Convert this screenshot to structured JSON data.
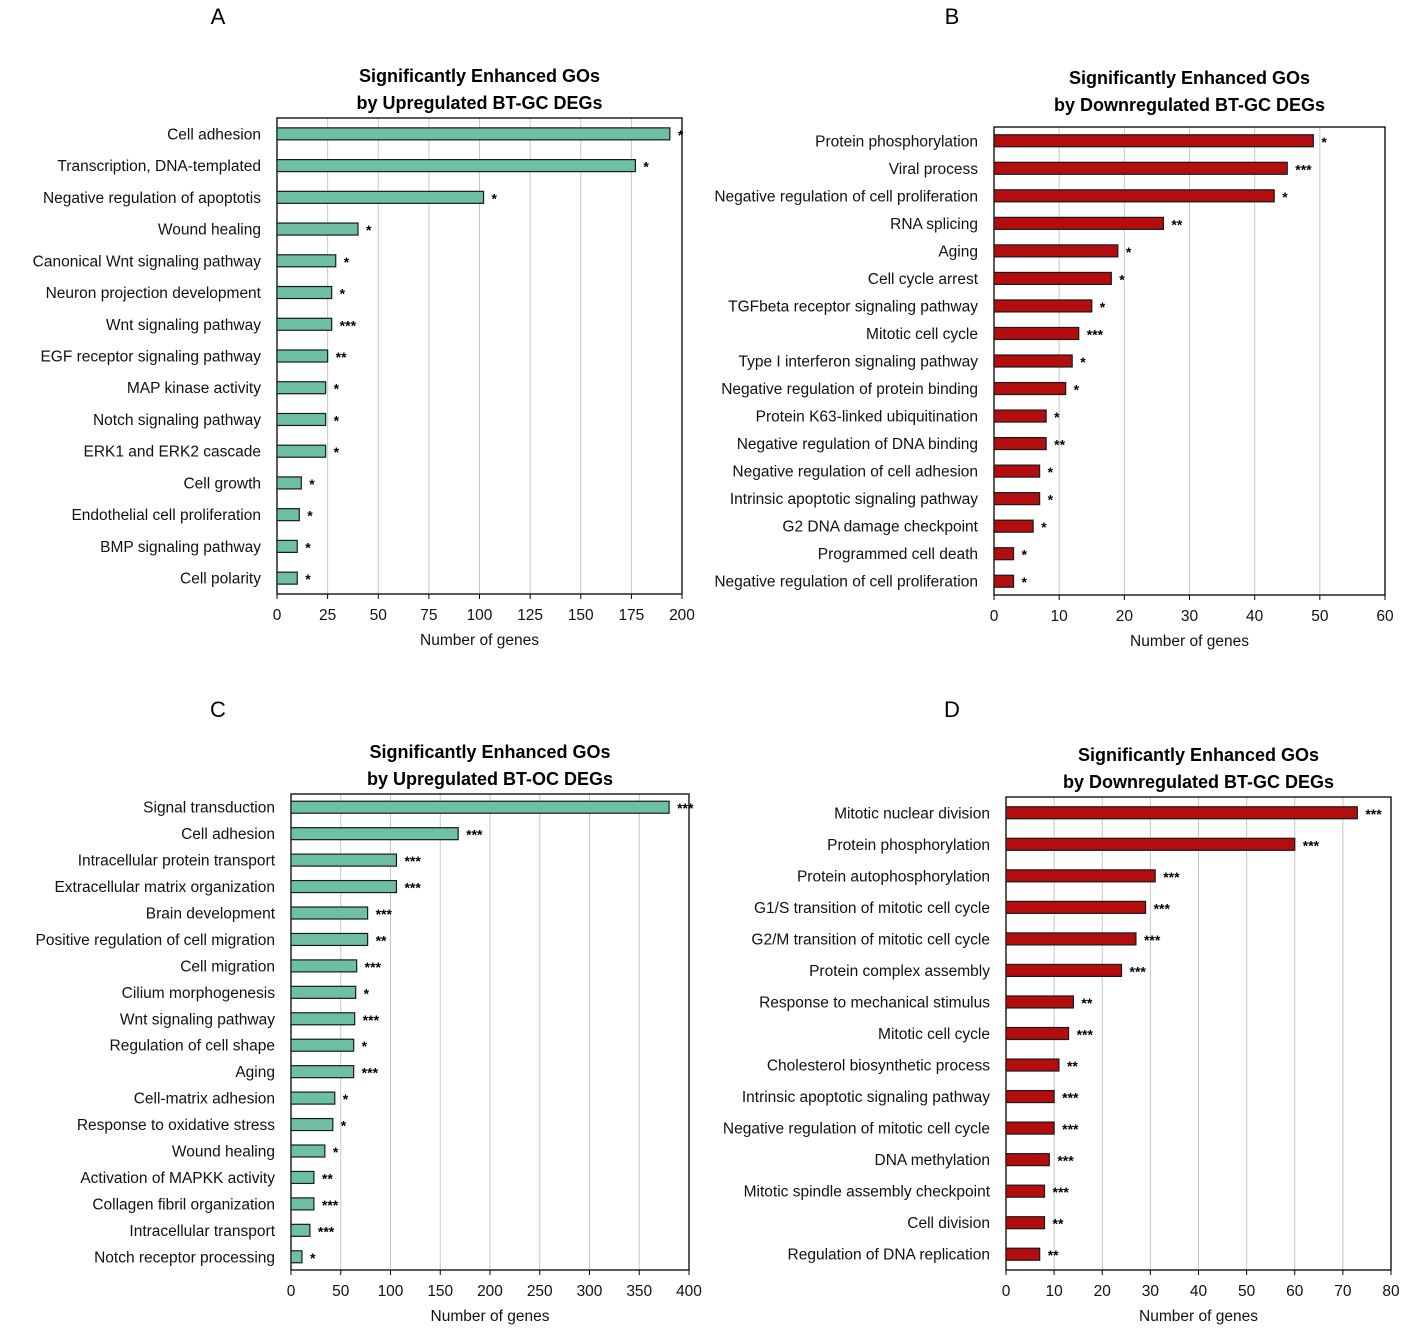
{
  "colors": {
    "up": "#6dbfa6",
    "down": "#b30d0d",
    "bar_edge": "#1a1a1a"
  },
  "chart_data": [
    {
      "panel": "A",
      "type": "bar",
      "orientation": "horizontal",
      "title_lines": [
        "Significantly Enhanced GOs",
        "by  Upregulated BT-GC DEGs"
      ],
      "xlabel": "Number of genes",
      "xlim": [
        0,
        200
      ],
      "xticks": [
        0,
        25,
        50,
        75,
        100,
        125,
        150,
        175,
        200
      ],
      "series_color": "up",
      "categories": [
        "Cell adhesion",
        "Transcription, DNA-templated",
        "Negative regulation of apoptotis",
        "Wound healing",
        "Canonical Wnt signaling pathway",
        "Neuron projection development",
        "Wnt signaling pathway",
        "EGF receptor signaling pathway",
        "MAP kinase activity",
        "Notch signaling pathway",
        "ERK1 and ERK2 cascade",
        "Cell growth",
        "Endothelial cell proliferation",
        "BMP signaling pathway",
        "Cell polarity"
      ],
      "values": [
        194,
        177,
        102,
        40,
        29,
        27,
        27,
        25,
        24,
        24,
        24,
        12,
        11,
        10,
        10
      ],
      "significance": [
        "*",
        "*",
        "*",
        "*",
        "*",
        "*",
        "***",
        "**",
        "*",
        "*",
        "*",
        "*",
        "*",
        "*",
        "*"
      ]
    },
    {
      "panel": "B",
      "type": "bar",
      "orientation": "horizontal",
      "title_lines": [
        "Significantly Enhanced GOs",
        "by Downregulated BT-GC DEGs"
      ],
      "xlabel": "Number of genes",
      "xlim": [
        0,
        60
      ],
      "xticks": [
        0,
        10,
        20,
        30,
        40,
        50,
        60
      ],
      "series_color": "down",
      "categories": [
        "Protein phosphorylation",
        "Viral process",
        "Negative regulation of cell proliferation",
        "RNA splicing",
        "Aging",
        "Cell cycle arrest",
        "TGFbeta receptor signaling pathway",
        "Mitotic cell cycle",
        "Type I interferon signaling pathway",
        "Negative regulation of protein binding",
        "Protein K63-linked ubiquitination",
        "Negative regulation of DNA binding",
        "Negative regulation of cell adhesion",
        "Intrinsic apoptotic signaling pathway",
        "G2 DNA damage checkpoint",
        "Programmed cell death",
        "Negative regulation of cell proliferation"
      ],
      "values": [
        49,
        45,
        43,
        26,
        19,
        18,
        15,
        13,
        12,
        11,
        8,
        8,
        7,
        7,
        6,
        3,
        3
      ],
      "significance": [
        "*",
        "***",
        "*",
        "**",
        "*",
        "*",
        "*",
        "***",
        "*",
        "*",
        "*",
        "**",
        "*",
        "*",
        "*",
        "*",
        "*"
      ]
    },
    {
      "panel": "C",
      "type": "bar",
      "orientation": "horizontal",
      "title_lines": [
        "Significantly Enhanced GOs",
        "by  Upregulated BT-OC DEGs"
      ],
      "xlabel": "Number of genes",
      "xlim": [
        0,
        400
      ],
      "xticks": [
        0,
        50,
        100,
        150,
        200,
        250,
        300,
        350,
        400
      ],
      "series_color": "up",
      "categories": [
        "Signal transduction",
        "Cell adhesion",
        "Intracellular protein transport",
        "Extracellular matrix organization",
        "Brain development",
        "Positive regulation of cell migration",
        "Cell migration",
        "Cilium morphogenesis",
        "Wnt signaling pathway",
        "Regulation of cell shape",
        "Aging",
        "Cell-matrix adhesion",
        "Response to oxidative stress",
        "Wound healing",
        "Activation of MAPKK activity",
        "Collagen fibril organization",
        "Intracellular transport",
        "Notch receptor processing"
      ],
      "values": [
        380,
        168,
        106,
        106,
        77,
        77,
        66,
        65,
        64,
        63,
        63,
        44,
        42,
        34,
        23,
        23,
        19,
        11
      ],
      "significance": [
        "***",
        "***",
        "***",
        "***",
        "***",
        "**",
        "***",
        "*",
        "***",
        "*",
        "***",
        "*",
        "*",
        "*",
        "**",
        "***",
        "***",
        "*"
      ]
    },
    {
      "panel": "D",
      "type": "bar",
      "orientation": "horizontal",
      "title_lines": [
        "Significantly Enhanced GOs",
        "by Downregulated BT-GC DEGs"
      ],
      "xlabel": "Number of genes",
      "xlim": [
        0,
        80
      ],
      "xticks": [
        0,
        10,
        20,
        30,
        40,
        50,
        60,
        70,
        80
      ],
      "series_color": "down",
      "categories": [
        "Mitotic nuclear division",
        "Protein phosphorylation",
        "Protein autophosphorylation",
        "G1/S transition of mitotic cell cycle",
        "G2/M transition of mitotic cell cycle",
        "Protein complex assembly",
        "Response to mechanical stimulus",
        "Mitotic cell cycle",
        "Cholesterol biosynthetic process",
        "Intrinsic apoptotic signaling pathway",
        "Negative regulation of mitotic cell cycle",
        "DNA methylation",
        "Mitotic spindle assembly checkpoint",
        "Cell division",
        "Regulation of DNA replication"
      ],
      "values": [
        73,
        60,
        31,
        29,
        27,
        24,
        14,
        13,
        11,
        10,
        10,
        9,
        8,
        8,
        7
      ],
      "significance": [
        "***",
        "***",
        "***",
        "***",
        "***",
        "***",
        "**",
        "***",
        "**",
        "***",
        "***",
        "***",
        "***",
        "**",
        "**"
      ]
    }
  ]
}
